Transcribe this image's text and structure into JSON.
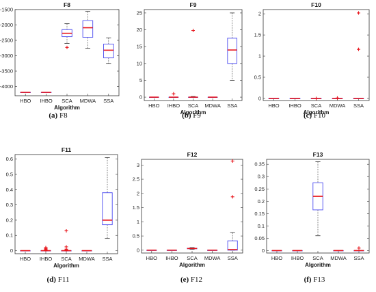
{
  "colors": {
    "box": "#4b4bf0",
    "median": "#e8141b",
    "outlier": "#e8141b",
    "whisker": "#555555",
    "axis": "#333333"
  },
  "chart_data": [
    {
      "type": "box",
      "title": "F8",
      "xlabel": "Algorithm",
      "ylabel": "",
      "ylim": [
        -4300,
        -1500
      ],
      "yticks": [
        -4000,
        -3500,
        -3000,
        -2500,
        -2000,
        -1500
      ],
      "ytick_labels": [
        "-4000",
        "-3500",
        "-3000",
        "-2500",
        "-2000",
        "-1500"
      ],
      "categories": [
        "HBO",
        "IHBO",
        "SCA",
        "MDWA",
        "SSA"
      ],
      "boxes": [
        {
          "min": -4190,
          "q1": -4190,
          "median": -4190,
          "q3": -4190,
          "max": -4190,
          "outliers": []
        },
        {
          "min": -4190,
          "q1": -4190,
          "median": -4190,
          "q3": -4190,
          "max": -4190,
          "outliers": []
        },
        {
          "min": -2600,
          "q1": -2380,
          "median": -2270,
          "q3": -2150,
          "max": -1960,
          "outliers": [
            -2730
          ]
        },
        {
          "min": -2760,
          "q1": -2400,
          "median": -2090,
          "q3": -1860,
          "max": -1560,
          "outliers": []
        },
        {
          "min": -3250,
          "q1": -3070,
          "median": -2820,
          "q3": -2620,
          "max": -2420,
          "outliers": []
        }
      ],
      "caption_letter": "(a)",
      "caption_name": "F8"
    },
    {
      "type": "box",
      "title": "F9",
      "xlabel": "Algorithm",
      "ylabel": "",
      "ylim": [
        -1,
        26
      ],
      "yticks": [
        0,
        5,
        10,
        15,
        20,
        25
      ],
      "ytick_labels": [
        "0",
        "5",
        "10",
        "15",
        "20",
        "25"
      ],
      "categories": [
        "HBO",
        "IHBO",
        "SCA",
        "MDWA",
        "SSA"
      ],
      "boxes": [
        {
          "min": 0,
          "q1": 0,
          "median": 0,
          "q3": 0,
          "max": 0,
          "outliers": []
        },
        {
          "min": 0,
          "q1": 0,
          "median": 0,
          "q3": 0,
          "max": 0,
          "outliers": [
            1
          ]
        },
        {
          "min": 0,
          "q1": 0,
          "median": 0,
          "q3": 0,
          "max": 0.2,
          "outliers": [
            19.8
          ]
        },
        {
          "min": 0,
          "q1": 0,
          "median": 0,
          "q3": 0,
          "max": 0,
          "outliers": []
        },
        {
          "min": 5,
          "q1": 10,
          "median": 14,
          "q3": 17.5,
          "max": 25,
          "outliers": []
        }
      ],
      "caption_letter": "(b)",
      "caption_name": "F9"
    },
    {
      "type": "box",
      "title": "F10",
      "xlabel": "Algorithm",
      "ylabel": "",
      "ylim": [
        -0.05,
        2.1
      ],
      "yticks": [
        0,
        0.5,
        1,
        1.5,
        2
      ],
      "ytick_labels": [
        "0",
        "0.5",
        "1",
        "1.5",
        "2"
      ],
      "categories": [
        "HBO",
        "IHBO",
        "SCA",
        "MDWA",
        "SSA"
      ],
      "boxes": [
        {
          "min": 0,
          "q1": 0,
          "median": 0,
          "q3": 0,
          "max": 0,
          "outliers": []
        },
        {
          "min": 0,
          "q1": 0,
          "median": 0,
          "q3": 0,
          "max": 0,
          "outliers": []
        },
        {
          "min": 0,
          "q1": 0,
          "median": 0,
          "q3": 0,
          "max": 0,
          "outliers": [
            0
          ]
        },
        {
          "min": 0,
          "q1": 0,
          "median": 0,
          "q3": 0,
          "max": 0,
          "outliers": [
            0.01
          ]
        },
        {
          "min": 0,
          "q1": 0,
          "median": 0,
          "q3": 0,
          "max": 0,
          "outliers": [
            1.16,
            2.02
          ]
        }
      ],
      "caption_letter": "(c)",
      "caption_name": "F10"
    },
    {
      "type": "box",
      "title": "F11",
      "xlabel": "Algorithm",
      "ylabel": "",
      "ylim": [
        -0.02,
        0.63
      ],
      "yticks": [
        0,
        0.1,
        0.2,
        0.3,
        0.4,
        0.5,
        0.6
      ],
      "ytick_labels": [
        "0",
        "0.1",
        "0.2",
        "0.3",
        "0.4",
        "0.5",
        "0.6"
      ],
      "categories": [
        "HBO",
        "IHBO",
        "SCA",
        "MDWA",
        "SSA"
      ],
      "boxes": [
        {
          "min": 0,
          "q1": 0,
          "median": 0,
          "q3": 0,
          "max": 0,
          "outliers": []
        },
        {
          "min": 0,
          "q1": 0,
          "median": 0,
          "q3": 0,
          "max": 0,
          "outliers": [
            0.005,
            0.01,
            0.015,
            0.02
          ]
        },
        {
          "min": 0,
          "q1": 0,
          "median": 0,
          "q3": 0,
          "max": 0,
          "outliers": [
            0.005,
            0.01,
            0.025,
            0.13
          ]
        },
        {
          "min": 0,
          "q1": 0,
          "median": 0,
          "q3": 0,
          "max": 0,
          "outliers": []
        },
        {
          "min": 0.08,
          "q1": 0.17,
          "median": 0.2,
          "q3": 0.38,
          "max": 0.61,
          "outliers": []
        }
      ],
      "caption_letter": "(d)",
      "caption_name": "F11"
    },
    {
      "type": "box",
      "title": "F12",
      "xlabel": "Algorithm",
      "ylabel": "",
      "ylim": [
        -0.1,
        3.2
      ],
      "yticks": [
        0,
        0.5,
        1,
        1.5,
        2,
        2.5,
        3
      ],
      "ytick_labels": [
        "0",
        "0.5",
        "1",
        "1.5",
        "2",
        "2.5",
        "3"
      ],
      "categories": [
        "HBO",
        "IHBO",
        "SCA",
        "MDWA",
        "SSA"
      ],
      "boxes": [
        {
          "min": 0,
          "q1": 0,
          "median": 0,
          "q3": 0,
          "max": 0,
          "outliers": []
        },
        {
          "min": 0,
          "q1": 0,
          "median": 0,
          "q3": 0,
          "max": 0,
          "outliers": []
        },
        {
          "min": 0.03,
          "q1": 0.05,
          "median": 0.06,
          "q3": 0.07,
          "max": 0.09,
          "outliers": []
        },
        {
          "min": 0,
          "q1": 0,
          "median": 0,
          "q3": 0,
          "max": 0,
          "outliers": []
        },
        {
          "min": 0,
          "q1": 0,
          "median": 0.02,
          "q3": 0.33,
          "max": 0.62,
          "outliers": [
            1.88,
            3.14
          ]
        }
      ],
      "caption_letter": "(e)",
      "caption_name": "F12"
    },
    {
      "type": "box",
      "title": "F13",
      "xlabel": "Algorithm",
      "ylabel": "",
      "ylim": [
        -0.01,
        0.37
      ],
      "yticks": [
        0,
        0.05,
        0.1,
        0.15,
        0.2,
        0.25,
        0.3,
        0.35
      ],
      "ytick_labels": [
        "0",
        "0.05",
        "0.1",
        "0.15",
        "0.2",
        "0.25",
        "0.3",
        "0.35"
      ],
      "categories": [
        "HBO",
        "IHBO",
        "SCA",
        "MDWA",
        "SSA"
      ],
      "boxes": [
        {
          "min": 0,
          "q1": 0,
          "median": 0,
          "q3": 0,
          "max": 0,
          "outliers": []
        },
        {
          "min": 0,
          "q1": 0,
          "median": 0,
          "q3": 0,
          "max": 0,
          "outliers": []
        },
        {
          "min": 0.06,
          "q1": 0.165,
          "median": 0.22,
          "q3": 0.275,
          "max": 0.36,
          "outliers": []
        },
        {
          "min": 0,
          "q1": 0,
          "median": 0,
          "q3": 0,
          "max": 0,
          "outliers": []
        },
        {
          "min": 0,
          "q1": 0,
          "median": 0,
          "q3": 0,
          "max": 0,
          "outliers": [
            0.01
          ]
        }
      ],
      "caption_letter": "(f)",
      "caption_name": "F13"
    }
  ]
}
